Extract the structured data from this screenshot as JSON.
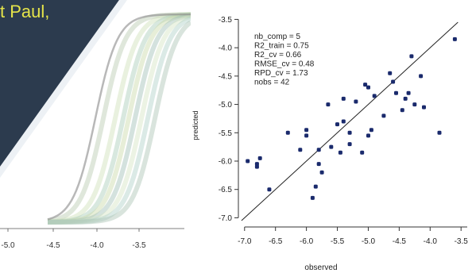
{
  "slide": {
    "title_fragment": "t Paul,",
    "colors": {
      "dark_panel": "#2c3b4e",
      "title_text": "#e5e44a"
    }
  },
  "left_chart": {
    "x_ticks": [
      "-5.0",
      "-4.5",
      "-4.0",
      "-3.5"
    ],
    "description_curves": "family of sigmoid curves with shaded bands"
  },
  "chart_data": {
    "type": "scatter",
    "title": "",
    "xlabel": "observed",
    "ylabel": "predicted",
    "xlim": [
      -7.1,
      -3.4
    ],
    "ylim": [
      -7.05,
      -3.55
    ],
    "x_ticks": [
      -7.0,
      -6.5,
      -6.0,
      -5.5,
      -5.0,
      -4.5,
      -4.0,
      -3.5
    ],
    "x_tick_labels": [
      "-7.0",
      "-6.5",
      "-6.0",
      "-5.5",
      "-5.0",
      "-4.5",
      "-4.0",
      "-3.5"
    ],
    "y_ticks": [
      -3.5,
      -4.0,
      -4.5,
      -5.0,
      -5.5,
      -6.0,
      -6.5,
      -7.0
    ],
    "y_tick_labels": [
      "-3.5",
      "-4.0",
      "-4.5",
      "-5.0",
      "-5.5",
      "-6.0",
      "-6.5",
      "-7.0"
    ],
    "reference_line": "y = x",
    "annotations": [
      "nb_comp = 5",
      "R2_train = 0.75",
      "R2_cv = 0.66",
      "RMSE_cv = 0.48",
      "RPD_cv = 1.73",
      "nobs = 42"
    ],
    "point_color": "#1a2a6c",
    "points": [
      [
        -6.95,
        -6.0
      ],
      [
        -6.8,
        -6.05
      ],
      [
        -6.8,
        -6.1
      ],
      [
        -6.75,
        -5.95
      ],
      [
        -6.6,
        -6.5
      ],
      [
        -6.3,
        -5.5
      ],
      [
        -6.1,
        -5.8
      ],
      [
        -6.0,
        -5.45
      ],
      [
        -6.0,
        -5.55
      ],
      [
        -5.9,
        -6.65
      ],
      [
        -5.85,
        -6.45
      ],
      [
        -5.8,
        -6.05
      ],
      [
        -5.8,
        -5.8
      ],
      [
        -5.75,
        -6.2
      ],
      [
        -5.6,
        -5.75
      ],
      [
        -5.5,
        -5.35
      ],
      [
        -5.45,
        -5.85
      ],
      [
        -5.4,
        -5.3
      ],
      [
        -5.4,
        -4.9
      ],
      [
        -5.3,
        -5.5
      ],
      [
        -5.3,
        -5.7
      ],
      [
        -5.2,
        -4.95
      ],
      [
        -5.1,
        -5.85
      ],
      [
        -5.05,
        -4.65
      ],
      [
        -5.0,
        -4.7
      ],
      [
        -5.0,
        -5.55
      ],
      [
        -4.95,
        -5.45
      ],
      [
        -4.9,
        -4.85
      ],
      [
        -4.75,
        -5.2
      ],
      [
        -4.65,
        -4.45
      ],
      [
        -4.6,
        -4.6
      ],
      [
        -4.55,
        -4.8
      ],
      [
        -4.45,
        -5.1
      ],
      [
        -4.4,
        -4.9
      ],
      [
        -4.35,
        -4.8
      ],
      [
        -4.3,
        -4.15
      ],
      [
        -4.25,
        -5.0
      ],
      [
        -4.15,
        -4.5
      ],
      [
        -4.1,
        -5.05
      ],
      [
        -3.85,
        -5.5
      ],
      [
        -3.6,
        -3.85
      ],
      [
        -5.65,
        -5.0
      ]
    ]
  }
}
